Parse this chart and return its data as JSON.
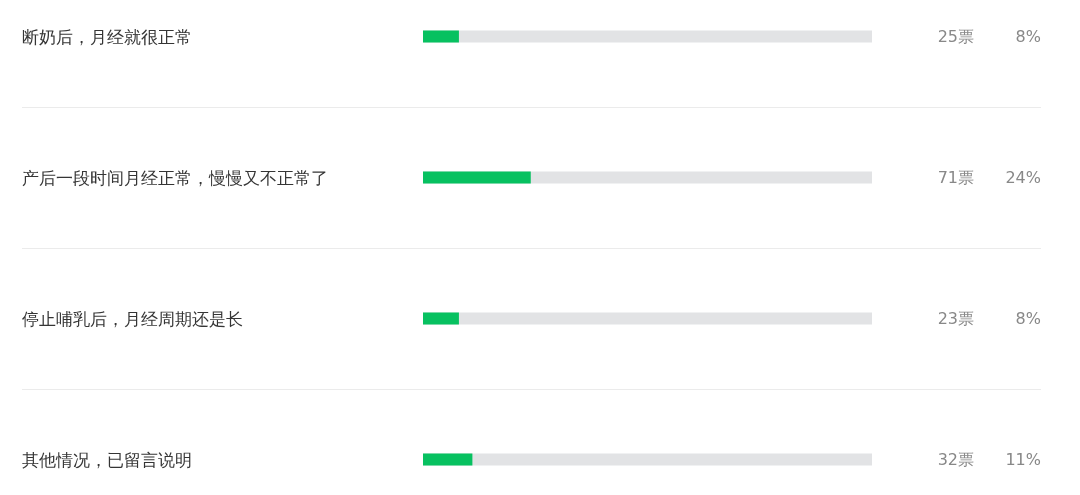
{
  "chart_data": {
    "type": "bar",
    "orientation": "horizontal",
    "categories": [
      "断奶后，月经就很正常",
      "产后一段时间月经正常，慢慢又不正常了",
      "停止哺乳后，月经周期还是长",
      "其他情况，已留言说明"
    ],
    "values": [
      8,
      24,
      8,
      11
    ],
    "value_labels": [
      "8%",
      "24%",
      "8%",
      "11%"
    ],
    "color": "#07c160",
    "xlim": [
      0,
      100
    ],
    "annotations": [
      "25票",
      "71票",
      "23票",
      "32票"
    ],
    "grid": "y",
    "tick_labels": "y"
  }
}
